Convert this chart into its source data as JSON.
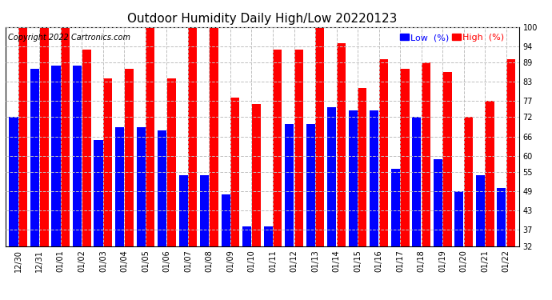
{
  "title": "Outdoor Humidity Daily High/Low 20220123",
  "copyright": "Copyright 2022 Cartronics.com",
  "dates": [
    "12/30",
    "12/31",
    "01/01",
    "01/02",
    "01/03",
    "01/04",
    "01/05",
    "01/06",
    "01/07",
    "01/08",
    "01/09",
    "01/10",
    "01/11",
    "01/12",
    "01/13",
    "01/14",
    "01/15",
    "01/16",
    "01/17",
    "01/18",
    "01/19",
    "01/20",
    "01/21",
    "01/22"
  ],
  "high": [
    100,
    100,
    100,
    93,
    84,
    87,
    100,
    84,
    100,
    100,
    78,
    76,
    93,
    93,
    100,
    95,
    81,
    90,
    87,
    89,
    86,
    72,
    77,
    90
  ],
  "low": [
    72,
    87,
    88,
    88,
    65,
    69,
    69,
    68,
    54,
    54,
    48,
    38,
    38,
    70,
    70,
    75,
    74,
    74,
    56,
    72,
    59,
    49,
    54,
    50
  ],
  "high_color": "#ff0000",
  "low_color": "#0000ff",
  "bg_color": "#ffffff",
  "grid_color": "#c0c0c0",
  "yticks": [
    32,
    37,
    43,
    49,
    55,
    60,
    66,
    72,
    77,
    83,
    89,
    94,
    100
  ],
  "ymin": 32,
  "ymax": 100,
  "title_fontsize": 11,
  "tick_fontsize": 7,
  "legend_fontsize": 8,
  "copyright_fontsize": 7
}
